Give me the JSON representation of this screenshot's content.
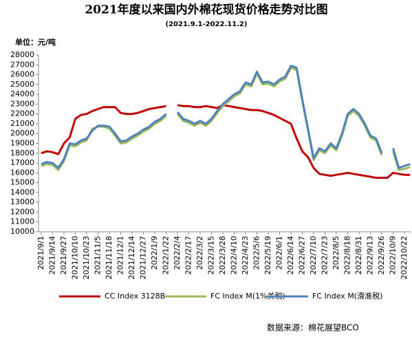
{
  "chart_data": {
    "type": "line",
    "title": "2021年度以来国内外棉花现货价格走势对比图",
    "subtitle": "(2021.9.1-2022.11.2)",
    "unit_label": "单位：元/吨",
    "source": "数据来源：棉花展望BCO",
    "categories": [
      "2021/9/1",
      null,
      "2021/9/14",
      null,
      "2021/9/27",
      null,
      "2021/10/10",
      null,
      "2021/10/23",
      null,
      "2021/11/5",
      null,
      "2021/11/18",
      null,
      "2021/12/1",
      null,
      "2021/12/14",
      null,
      "2021/12/27",
      null,
      "2022/1/9",
      null,
      "2022/1/22",
      null,
      "2022/2/4",
      null,
      "2022/2/17",
      null,
      "2022/3/2",
      null,
      "2022/3/15",
      null,
      "2022/3/28",
      null,
      "2022/4/10",
      null,
      "2022/4/23",
      null,
      "2022/5/6",
      null,
      "2022/5/19",
      null,
      "2022/6/1",
      null,
      "2022/6/14",
      null,
      "2022/6/27",
      null,
      "2022/7/10",
      null,
      "2022/7/23",
      null,
      "2022/8/5",
      null,
      "2022/8/18",
      null,
      "2022/8/31",
      null,
      "2022/9/13",
      null,
      "2022/9/26",
      null,
      "2022/10/9",
      null,
      "2022/10/22",
      null
    ],
    "series": [
      {
        "name": "CC Index 3128B",
        "color": "#c00000",
        "values": [
          18000,
          18200,
          18100,
          17900,
          19000,
          19600,
          21500,
          21900,
          22000,
          22300,
          22500,
          22700,
          22700,
          22700,
          22100,
          22000,
          22000,
          22100,
          22300,
          22500,
          22600,
          22700,
          22800,
          null,
          22900,
          22800,
          22800,
          22700,
          22700,
          22800,
          22700,
          22600,
          22900,
          22800,
          22700,
          22600,
          22500,
          22400,
          22400,
          22300,
          22100,
          21900,
          21600,
          21300,
          21000,
          19500,
          18200,
          17600,
          16500,
          15900,
          15800,
          15700,
          15800,
          15900,
          16000,
          15900,
          15800,
          15700,
          15600,
          15500,
          15500,
          15500,
          16000,
          15900,
          15800,
          15800
        ]
      },
      {
        "name": "FC Index M(1%关税)",
        "color": "#9bbb59",
        "values": [
          16700,
          16900,
          16800,
          16300,
          17200,
          18800,
          18700,
          19100,
          19300,
          20500,
          20700,
          20700,
          20500,
          19800,
          19000,
          19100,
          19500,
          19800,
          20200,
          20500,
          21000,
          21300,
          21800,
          null,
          22000,
          21300,
          21100,
          20800,
          21100,
          20800,
          21300,
          22100,
          22800,
          23300,
          23800,
          24100,
          25000,
          24800,
          26100,
          25000,
          25100,
          24800,
          25300,
          25600,
          26700,
          26500,
          23300,
          20300,
          17300,
          18300,
          18000,
          18800,
          18300,
          19800,
          21800,
          22300,
          21800,
          20800,
          19600,
          19300,
          17800,
          null,
          18200,
          16300,
          16400,
          16600
        ]
      },
      {
        "name": "FC Index M(滑准税)",
        "color": "#4f81bd",
        "values": [
          16900,
          17100,
          17000,
          16500,
          17400,
          19000,
          18900,
          19300,
          19500,
          20300,
          20800,
          20800,
          20700,
          20000,
          19200,
          19300,
          19700,
          20000,
          20400,
          20700,
          21200,
          21500,
          22000,
          null,
          22200,
          21500,
          21300,
          21000,
          21300,
          21000,
          21500,
          22300,
          23000,
          23500,
          24000,
          24300,
          25200,
          25000,
          26300,
          25200,
          25300,
          25000,
          25500,
          25800,
          26900,
          26700,
          23500,
          20500,
          17500,
          18500,
          18200,
          19000,
          18500,
          20000,
          22000,
          22500,
          22000,
          21000,
          19800,
          19500,
          18000,
          null,
          18500,
          16500,
          16700,
          16900
        ]
      }
    ],
    "ylim": [
      10000,
      28000
    ],
    "yticks": [
      10000,
      11000,
      12000,
      13000,
      14000,
      15000,
      16000,
      17000,
      18000,
      19000,
      20000,
      21000,
      22000,
      23000,
      24000,
      25000,
      26000,
      27000,
      28000
    ],
    "grid": false
  }
}
